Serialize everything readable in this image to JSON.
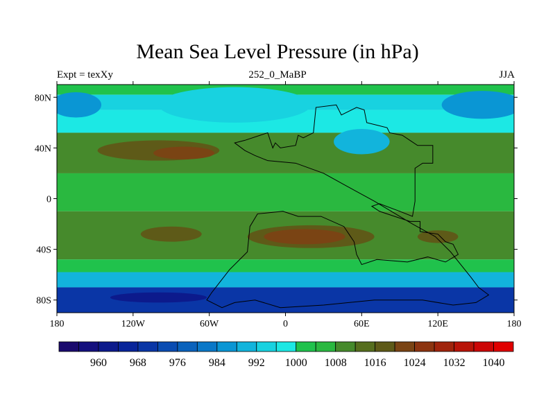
{
  "title": "Mean Sea Level Pressure (in hPa)",
  "subtitle_left": "Expt = texXy",
  "subtitle_center": "252_0_MaBP",
  "subtitle_right": "JJA",
  "chart_data": {
    "type": "heatmap",
    "title": "Mean Sea Level Pressure (in hPa)",
    "units": "hPa",
    "season": "JJA",
    "experiment": "texXy",
    "time": "252_0_MaBP",
    "xlabel": "",
    "ylabel": "",
    "xlim": [
      -180,
      180
    ],
    "ylim": [
      -90,
      90
    ],
    "x_ticks": [
      {
        "value": -180,
        "label": "180"
      },
      {
        "value": -120,
        "label": "120W"
      },
      {
        "value": -60,
        "label": "60W"
      },
      {
        "value": 0,
        "label": "0"
      },
      {
        "value": 60,
        "label": "60E"
      },
      {
        "value": 120,
        "label": "120E"
      },
      {
        "value": 180,
        "label": "180"
      }
    ],
    "y_ticks": [
      {
        "value": 80,
        "label": "80N"
      },
      {
        "value": 40,
        "label": "40N"
      },
      {
        "value": 0,
        "label": "0"
      },
      {
        "value": -40,
        "label": "40S"
      },
      {
        "value": -80,
        "label": "80S"
      }
    ],
    "colorbar": {
      "levels": [
        956,
        960,
        964,
        968,
        972,
        976,
        980,
        984,
        988,
        992,
        996,
        1000,
        1004,
        1008,
        1012,
        1016,
        1020,
        1024,
        1028,
        1032,
        1036,
        1040
      ],
      "colors": [
        "#1a0a6e",
        "#14107e",
        "#0c1a8c",
        "#08249a",
        "#0a36a6",
        "#0a4cb2",
        "#0a62bc",
        "#0a78c8",
        "#0a96d4",
        "#12b4dc",
        "#18d2e0",
        "#1ce8e4",
        "#20c24c",
        "#2ab840",
        "#468a2c",
        "#566e1e",
        "#5e5a18",
        "#7a4414",
        "#8c3410",
        "#a0240c",
        "#b81408",
        "#cc0606",
        "#e00000"
      ],
      "tick_labels": [
        "960",
        "968",
        "976",
        "984",
        "992",
        "1000",
        "1008",
        "1016",
        "1024",
        "1032",
        "1040"
      ]
    },
    "bands": [
      {
        "lat": [
          90,
          82
        ],
        "value": 1000
      },
      {
        "lat": [
          82,
          70
        ],
        "value": 994
      },
      {
        "lat": [
          70,
          52
        ],
        "value": 998
      },
      {
        "lat": [
          52,
          20
        ],
        "value": 1009
      },
      {
        "lat": [
          20,
          -10
        ],
        "value": 1006
      },
      {
        "lat": [
          -10,
          -48
        ],
        "value": 1011
      },
      {
        "lat": [
          -48,
          -58
        ],
        "value": 1000
      },
      {
        "lat": [
          -58,
          -70
        ],
        "value": 988
      },
      {
        "lat": [
          -70,
          -90
        ],
        "value": 968
      }
    ],
    "features": [
      {
        "name": "north-atlantic-low",
        "center": [
          -40,
          74
        ],
        "value": 992
      },
      {
        "name": "north-pacific-low",
        "center": [
          155,
          74
        ],
        "value": 984
      },
      {
        "name": "arctic-low",
        "center": [
          -165,
          74
        ],
        "value": 984
      },
      {
        "name": "pangea-monsoon-low",
        "center": [
          60,
          45
        ],
        "value": 988
      },
      {
        "name": "subtropical-high-north",
        "center": [
          -100,
          38
        ],
        "value": 1016
      },
      {
        "name": "subtropical-high-north-core",
        "center": [
          -80,
          36
        ],
        "value": 1020
      },
      {
        "name": "subtropical-high-south",
        "center": [
          20,
          -30
        ],
        "value": 1016
      },
      {
        "name": "subtropical-high-south-core",
        "center": [
          15,
          -30
        ],
        "value": 1020
      },
      {
        "name": "subtropical-high-southwest",
        "center": [
          -90,
          -28
        ],
        "value": 1016
      },
      {
        "name": "indian-high",
        "center": [
          120,
          -30
        ],
        "value": 1016
      },
      {
        "name": "southern-circumpolar-low",
        "center": [
          -100,
          -78
        ],
        "value": 960
      }
    ],
    "land_outline": "Pangea (Permian-Triassic, 252 Ma)"
  }
}
